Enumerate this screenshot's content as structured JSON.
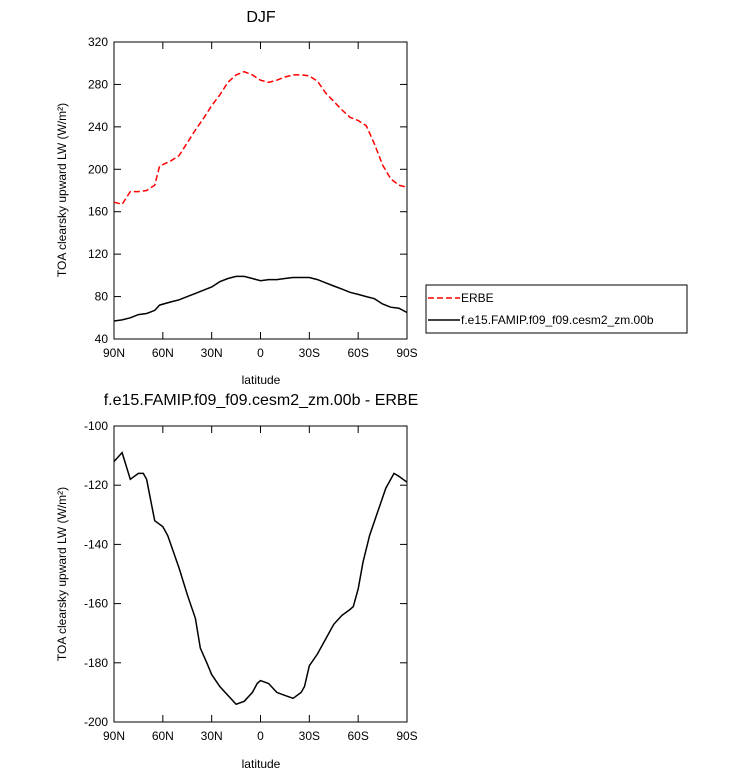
{
  "chart_data": [
    {
      "type": "line",
      "title": "DJF",
      "x_label": "latitude",
      "y_label": "TOA clearsky upward LW (W/m²)",
      "xlim": [
        90,
        -90
      ],
      "ylim": [
        40,
        320
      ],
      "xticks": [
        {
          "value": 90,
          "label": "90N"
        },
        {
          "value": 60,
          "label": "60N"
        },
        {
          "value": 30,
          "label": "30N"
        },
        0,
        {
          "value": -30,
          "label": "30S"
        },
        {
          "value": -60,
          "label": "60S"
        },
        {
          "value": -90,
          "label": "90S"
        }
      ],
      "yticks": [
        40,
        80,
        120,
        160,
        200,
        240,
        280,
        320
      ],
      "legend": "right",
      "x": [
        90,
        85,
        80,
        75,
        70,
        65,
        62,
        55,
        50,
        45,
        40,
        35,
        30,
        25,
        20,
        15,
        10,
        5,
        0,
        -5,
        -10,
        -15,
        -20,
        -25,
        -30,
        -35,
        -40,
        -45,
        -50,
        -55,
        -60,
        -65,
        -70,
        -75,
        -80,
        -85,
        -90
      ],
      "series": [
        {
          "name": "ERBE",
          "color": "#ff0000",
          "dash": true,
          "values": [
            169,
            167,
            179,
            179,
            180,
            185,
            203,
            208,
            213,
            225,
            237,
            248,
            260,
            270,
            282,
            289,
            292,
            289,
            284,
            282,
            284,
            287,
            289,
            289,
            288,
            283,
            272,
            264,
            256,
            249,
            246,
            241,
            224,
            204,
            191,
            185,
            183
          ]
        },
        {
          "name": "f.e15.FAMIP.f09_f09.cesm2_zm.00b",
          "color": "#000000",
          "dash": false,
          "values": [
            57,
            58,
            60,
            63,
            64,
            67,
            72,
            75,
            77,
            80,
            83,
            86,
            89,
            94,
            97,
            99,
            99,
            97,
            95,
            96,
            96,
            97,
            98,
            98,
            98,
            96,
            93,
            90,
            87,
            84,
            82,
            80,
            78,
            73,
            70,
            69,
            65
          ]
        }
      ]
    },
    {
      "type": "line",
      "title": "f.e15.FAMIP.f09_f09.cesm2_zm.00b - ERBE",
      "x_label": "latitude",
      "y_label": "TOA clearsky upward LW (W/m²)",
      "xlim": [
        90,
        -90
      ],
      "ylim": [
        -200,
        -100
      ],
      "xticks": [
        {
          "value": 90,
          "label": "90N"
        },
        {
          "value": 60,
          "label": "60N"
        },
        {
          "value": 30,
          "label": "30N"
        },
        0,
        {
          "value": -30,
          "label": "30S"
        },
        {
          "value": -60,
          "label": "60S"
        },
        {
          "value": -90,
          "label": "90S"
        }
      ],
      "yticks": [
        -200,
        -180,
        -160,
        -140,
        -120,
        -100
      ],
      "x": [
        90,
        85,
        80,
        75,
        72,
        70,
        65,
        60,
        57,
        50,
        45,
        40,
        37,
        33,
        30,
        25,
        20,
        15,
        10,
        5,
        2,
        0,
        -5,
        -10,
        -15,
        -20,
        -25,
        -27,
        -30,
        -35,
        -40,
        -45,
        -50,
        -55,
        -57,
        -60,
        -63,
        -67,
        -72,
        -77,
        -82,
        -85,
        -90
      ],
      "series": [
        {
          "color": "#000000",
          "dash": false,
          "values": [
            -112,
            -109,
            -118,
            -116,
            -116,
            -118,
            -132,
            -134,
            -137,
            -148,
            -157,
            -165,
            -175,
            -180,
            -184,
            -188,
            -191,
            -194,
            -193,
            -190,
            -187,
            -186,
            -187,
            -190,
            -191,
            -192,
            -190,
            -188,
            -181,
            -177,
            -172,
            -167,
            -164,
            -162,
            -161,
            -155,
            -146,
            -137,
            -129,
            -121,
            -116,
            -117,
            -119
          ]
        }
      ]
    }
  ]
}
